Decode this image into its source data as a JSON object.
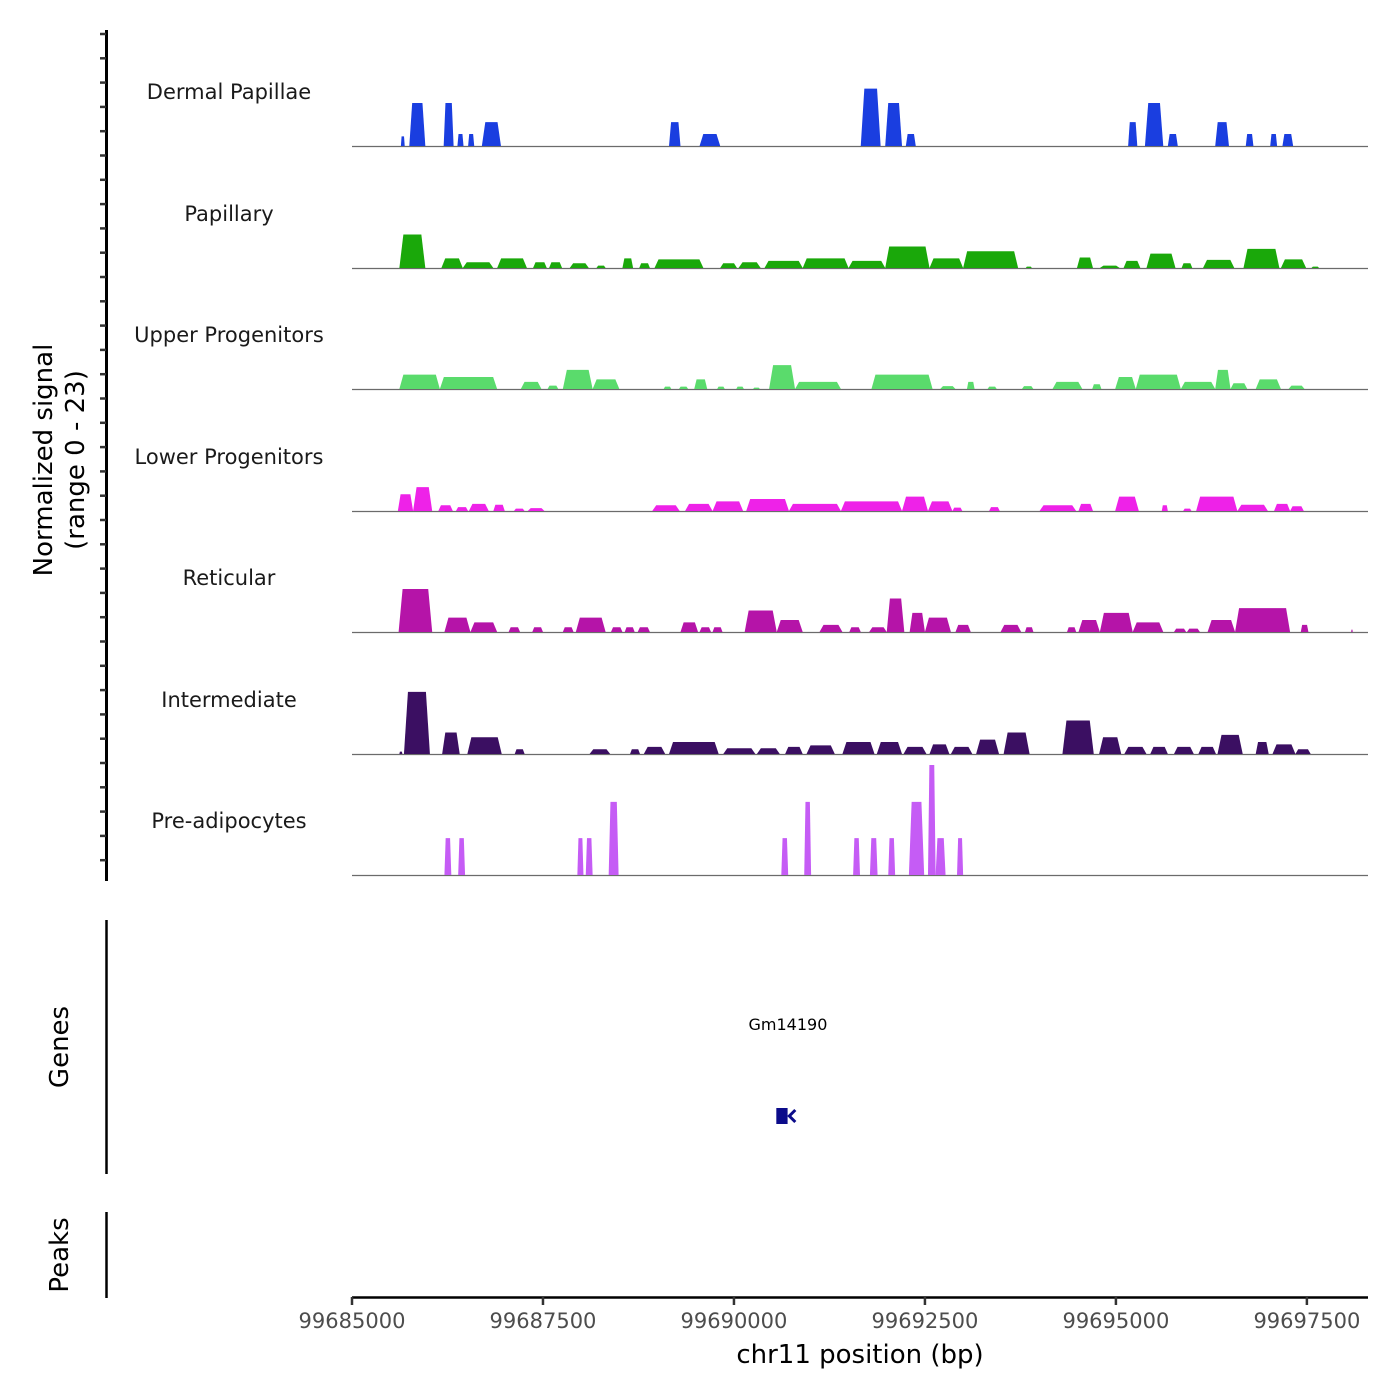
{
  "chart_data": {
    "type": "area",
    "title": "",
    "ylabel": "Normalized signal",
    "ylabel_sub": "(range 0 - 23)",
    "ylim": [
      0,
      23
    ],
    "xlabel": "chr11 position (bp)",
    "xlim": [
      99685000,
      99698300
    ],
    "xticks": [
      99685000,
      99687500,
      99690000,
      99692500,
      99695000,
      99697500
    ],
    "xtick_labels": [
      "99685000",
      "99687500",
      "99690000",
      "99692500",
      "99695000",
      "99697500"
    ],
    "tracks": [
      {
        "name": "Dermal Papillae",
        "color": "#1a3ee0",
        "peaks": [
          [
            99685640,
            99685690,
            2
          ],
          [
            99685750,
            99685960,
            9
          ],
          [
            99686200,
            99686330,
            9
          ],
          [
            99686380,
            99686460,
            2.5
          ],
          [
            99686520,
            99686600,
            2.5
          ],
          [
            99686700,
            99686950,
            5
          ],
          [
            99689150,
            99689300,
            5
          ],
          [
            99689550,
            99689820,
            2.5
          ],
          [
            99691660,
            99691920,
            12
          ],
          [
            99691980,
            99692200,
            9
          ],
          [
            99692250,
            99692380,
            2.5
          ],
          [
            99695160,
            99695280,
            5
          ],
          [
            99695380,
            99695620,
            9
          ],
          [
            99695680,
            99695810,
            2.5
          ],
          [
            99696300,
            99696480,
            5
          ],
          [
            99696700,
            99696800,
            2.5
          ],
          [
            99697020,
            99697110,
            2.5
          ],
          [
            99697180,
            99697320,
            2.5
          ]
        ]
      },
      {
        "name": "Papillary",
        "color": "#1aa80a",
        "peaks": [
          [
            99685620,
            99685960,
            7
          ],
          [
            99686170,
            99686450,
            2
          ],
          [
            99686450,
            99686850,
            1.2
          ],
          [
            99686900,
            99687290,
            2
          ],
          [
            99687370,
            99687550,
            1.2
          ],
          [
            99687580,
            99687750,
            1.2
          ],
          [
            99687850,
            99688100,
            1
          ],
          [
            99688200,
            99688320,
            0.5
          ],
          [
            99688540,
            99688680,
            2
          ],
          [
            99688760,
            99688900,
            1
          ],
          [
            99688960,
            99689600,
            1.8
          ],
          [
            99689820,
            99690040,
            1
          ],
          [
            99690060,
            99690350,
            1.2
          ],
          [
            99690400,
            99690900,
            1.5
          ],
          [
            99690900,
            99691500,
            2
          ],
          [
            99691500,
            99691980,
            1.5
          ],
          [
            99691980,
            99692560,
            4.5
          ],
          [
            99692560,
            99693000,
            2
          ],
          [
            99693000,
            99693720,
            3.5
          ],
          [
            99693820,
            99693900,
            0.3
          ],
          [
            99694490,
            99694700,
            2.2
          ],
          [
            99694790,
            99695050,
            0.5
          ],
          [
            99695100,
            99695320,
            1.5
          ],
          [
            99695400,
            99695780,
            3
          ],
          [
            99695860,
            99696000,
            1
          ],
          [
            99696140,
            99696550,
            1.7
          ],
          [
            99696670,
            99697140,
            4
          ],
          [
            99697160,
            99697490,
            1.8
          ],
          [
            99697560,
            99697660,
            0.3
          ]
        ]
      },
      {
        "name": "Upper Progenitors",
        "color": "#5adb6c",
        "peaks": [
          [
            99685620,
            99686150,
            3
          ],
          [
            99686150,
            99686900,
            2.5
          ],
          [
            99687210,
            99687480,
            1.5
          ],
          [
            99687560,
            99687700,
            0.7
          ],
          [
            99687760,
            99688150,
            4
          ],
          [
            99688150,
            99688500,
            2
          ],
          [
            99689080,
            99689180,
            0.5
          ],
          [
            99689280,
            99689400,
            0.5
          ],
          [
            99689480,
            99689650,
            2
          ],
          [
            99689780,
            99689880,
            0.5
          ],
          [
            99690030,
            99690130,
            0.5
          ],
          [
            99690250,
            99690340,
            0.3
          ],
          [
            99690460,
            99690800,
            5
          ],
          [
            99690800,
            99691400,
            1.5
          ],
          [
            99691800,
            99692600,
            3
          ],
          [
            99692700,
            99692900,
            0.6
          ],
          [
            99693050,
            99693150,
            1.5
          ],
          [
            99693320,
            99693440,
            0.5
          ],
          [
            99693770,
            99693920,
            0.6
          ],
          [
            99694170,
            99694560,
            1.5
          ],
          [
            99694690,
            99694810,
            1
          ],
          [
            99694990,
            99695260,
            2.5
          ],
          [
            99695260,
            99695850,
            3
          ],
          [
            99695850,
            99696300,
            1.5
          ],
          [
            99696300,
            99696500,
            4
          ],
          [
            99696500,
            99696720,
            1.2
          ],
          [
            99696830,
            99697160,
            2
          ],
          [
            99697260,
            99697470,
            0.7
          ]
        ]
      },
      {
        "name": "Lower Progenitors",
        "color": "#ee22e8",
        "peaks": [
          [
            99685600,
            99685800,
            3.5
          ],
          [
            99685800,
            99686050,
            5
          ],
          [
            99686130,
            99686320,
            1.2
          ],
          [
            99686360,
            99686520,
            0.8
          ],
          [
            99686530,
            99686790,
            1.5
          ],
          [
            99686850,
            99687000,
            1.3
          ],
          [
            99687120,
            99687260,
            0.5
          ],
          [
            99687300,
            99687520,
            0.6
          ],
          [
            99688930,
            99689290,
            1.2
          ],
          [
            99689360,
            99689720,
            1.5
          ],
          [
            99689720,
            99690120,
            2
          ],
          [
            99690160,
            99690720,
            2.5
          ],
          [
            99690720,
            99691400,
            1.5
          ],
          [
            99691400,
            99692200,
            2
          ],
          [
            99692200,
            99692540,
            3
          ],
          [
            99692540,
            99692860,
            2
          ],
          [
            99692860,
            99692990,
            0.7
          ],
          [
            99693340,
            99693480,
            0.8
          ],
          [
            99694000,
            99694480,
            1.2
          ],
          [
            99694510,
            99694700,
            1.5
          ],
          [
            99694990,
            99695300,
            3
          ],
          [
            99695600,
            99695680,
            1.2
          ],
          [
            99695880,
            99695990,
            0.5
          ],
          [
            99696050,
            99696590,
            3
          ],
          [
            99696590,
            99696990,
            1.3
          ],
          [
            99697070,
            99697280,
            1.5
          ],
          [
            99697280,
            99697460,
            1
          ]
        ]
      },
      {
        "name": "Reticular",
        "color": "#b514a8",
        "peaks": [
          [
            99685610,
            99686050,
            9
          ],
          [
            99686210,
            99686550,
            3
          ],
          [
            99686550,
            99686900,
            2
          ],
          [
            99687050,
            99687200,
            1
          ],
          [
            99687360,
            99687500,
            1
          ],
          [
            99687760,
            99687900,
            1
          ],
          [
            99687930,
            99688320,
            3
          ],
          [
            99688390,
            99688540,
            1
          ],
          [
            99688570,
            99688700,
            1
          ],
          [
            99688740,
            99688900,
            1
          ],
          [
            99689300,
            99689530,
            2
          ],
          [
            99689550,
            99689700,
            1
          ],
          [
            99689720,
            99689850,
            1
          ],
          [
            99690140,
            99690560,
            4.5
          ],
          [
            99690560,
            99690900,
            2.5
          ],
          [
            99691120,
            99691420,
            1.5
          ],
          [
            99691510,
            99691660,
            1
          ],
          [
            99691770,
            99692000,
            1
          ],
          [
            99692000,
            99692230,
            7
          ],
          [
            99692300,
            99692500,
            4
          ],
          [
            99692500,
            99692840,
            3
          ],
          [
            99692900,
            99693100,
            1.5
          ],
          [
            99693490,
            99693760,
            1.5
          ],
          [
            99693810,
            99693920,
            1
          ],
          [
            99694360,
            99694480,
            1
          ],
          [
            99694510,
            99694790,
            2.5
          ],
          [
            99694790,
            99695220,
            4
          ],
          [
            99695220,
            99695620,
            2
          ],
          [
            99695760,
            99695920,
            0.7
          ],
          [
            99695930,
            99696100,
            0.7
          ],
          [
            99696200,
            99696560,
            2.5
          ],
          [
            99696560,
            99697280,
            5
          ],
          [
            99697420,
            99697520,
            1.5
          ],
          [
            99698080,
            99698100,
            0.5
          ]
        ]
      },
      {
        "name": "Intermediate",
        "color": "#3b0f62",
        "peaks": [
          [
            99685620,
            99685660,
            0.5
          ],
          [
            99685680,
            99686020,
            13
          ],
          [
            99686180,
            99686410,
            4.5
          ],
          [
            99686510,
            99686960,
            3.5
          ],
          [
            99687130,
            99687260,
            1
          ],
          [
            99688110,
            99688380,
            1
          ],
          [
            99688640,
            99688770,
            1
          ],
          [
            99688820,
            99689100,
            1.5
          ],
          [
            99689150,
            99689800,
            2.5
          ],
          [
            99689860,
            99690280,
            1.2
          ],
          [
            99690300,
            99690600,
            1.2
          ],
          [
            99690670,
            99690900,
            1.5
          ],
          [
            99690950,
            99691320,
            1.8
          ],
          [
            99691420,
            99691840,
            2.5
          ],
          [
            99691870,
            99692200,
            2.5
          ],
          [
            99692220,
            99692520,
            1.5
          ],
          [
            99692560,
            99692820,
            2
          ],
          [
            99692840,
            99693120,
            1.5
          ],
          [
            99693170,
            99693470,
            3
          ],
          [
            99693530,
            99693870,
            4.5
          ],
          [
            99694300,
            99694710,
            7
          ],
          [
            99694780,
            99695070,
            3.5
          ],
          [
            99695110,
            99695400,
            1.5
          ],
          [
            99695450,
            99695680,
            1.5
          ],
          [
            99695760,
            99696020,
            1.5
          ],
          [
            99696080,
            99696310,
            1.5
          ],
          [
            99696330,
            99696660,
            4
          ],
          [
            99696830,
            99697000,
            2.5
          ],
          [
            99697050,
            99697350,
            2
          ],
          [
            99697350,
            99697550,
            1
          ]
        ]
      },
      {
        "name": "Pre-adipocytes",
        "color": "#c55cf5",
        "peaks": [
          [
            99686210,
            99686300,
            7.7
          ],
          [
            99686390,
            99686480,
            7.7
          ],
          [
            99687950,
            99688030,
            7.7
          ],
          [
            99688060,
            99688150,
            7.7
          ],
          [
            99688360,
            99688490,
            15.3
          ],
          [
            99690620,
            99690710,
            7.7
          ],
          [
            99690920,
            99691010,
            15.3
          ],
          [
            99691560,
            99691650,
            7.7
          ],
          [
            99691780,
            99691880,
            7.7
          ],
          [
            99692020,
            99692110,
            7.7
          ],
          [
            99692290,
            99692490,
            15.3
          ],
          [
            99692540,
            99692640,
            23
          ],
          [
            99692640,
            99692770,
            7.7
          ],
          [
            99692920,
            99693000,
            7.7
          ]
        ]
      }
    ],
    "genes": [
      {
        "name": "Gm14190",
        "start": 99690620,
        "end": 99690820,
        "strand": "-",
        "color": "#0b0b8a"
      }
    ],
    "panel_labels": {
      "genes": "Genes",
      "peaks": "Peaks"
    },
    "baseline_color": "#6b6b6b"
  }
}
